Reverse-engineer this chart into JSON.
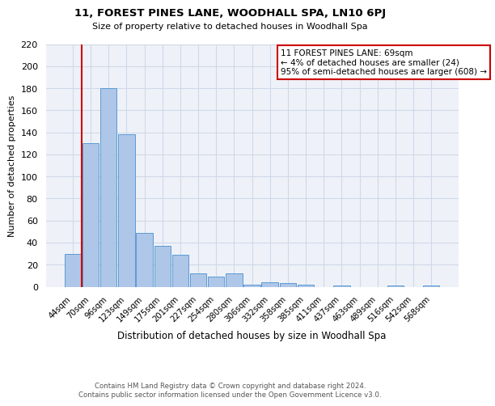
{
  "title": "11, FOREST PINES LANE, WOODHALL SPA, LN10 6PJ",
  "subtitle": "Size of property relative to detached houses in Woodhall Spa",
  "xlabel": "Distribution of detached houses by size in Woodhall Spa",
  "ylabel": "Number of detached properties",
  "bar_labels": [
    "44sqm",
    "70sqm",
    "96sqm",
    "123sqm",
    "149sqm",
    "175sqm",
    "201sqm",
    "227sqm",
    "254sqm",
    "280sqm",
    "306sqm",
    "332sqm",
    "358sqm",
    "385sqm",
    "411sqm",
    "437sqm",
    "463sqm",
    "489sqm",
    "516sqm",
    "542sqm",
    "568sqm"
  ],
  "bar_values": [
    30,
    130,
    180,
    138,
    49,
    37,
    29,
    12,
    9,
    12,
    2,
    4,
    3,
    2,
    0,
    1,
    0,
    0,
    1,
    0,
    1
  ],
  "bar_color": "#aec6e8",
  "bar_edge_color": "#5b9bd5",
  "grid_color": "#d0d8e8",
  "bg_color": "#eef2f8",
  "vline_color": "#cc0000",
  "box_text_line1": "11 FOREST PINES LANE: 69sqm",
  "box_text_line2": "← 4% of detached houses are smaller (24)",
  "box_text_line3": "95% of semi-detached houses are larger (608) →",
  "box_edge_color": "#cc0000",
  "ylim": [
    0,
    220
  ],
  "yticks": [
    0,
    20,
    40,
    60,
    80,
    100,
    120,
    140,
    160,
    180,
    200,
    220
  ],
  "footer_line1": "Contains HM Land Registry data © Crown copyright and database right 2024.",
  "footer_line2": "Contains public sector information licensed under the Open Government Licence v3.0."
}
